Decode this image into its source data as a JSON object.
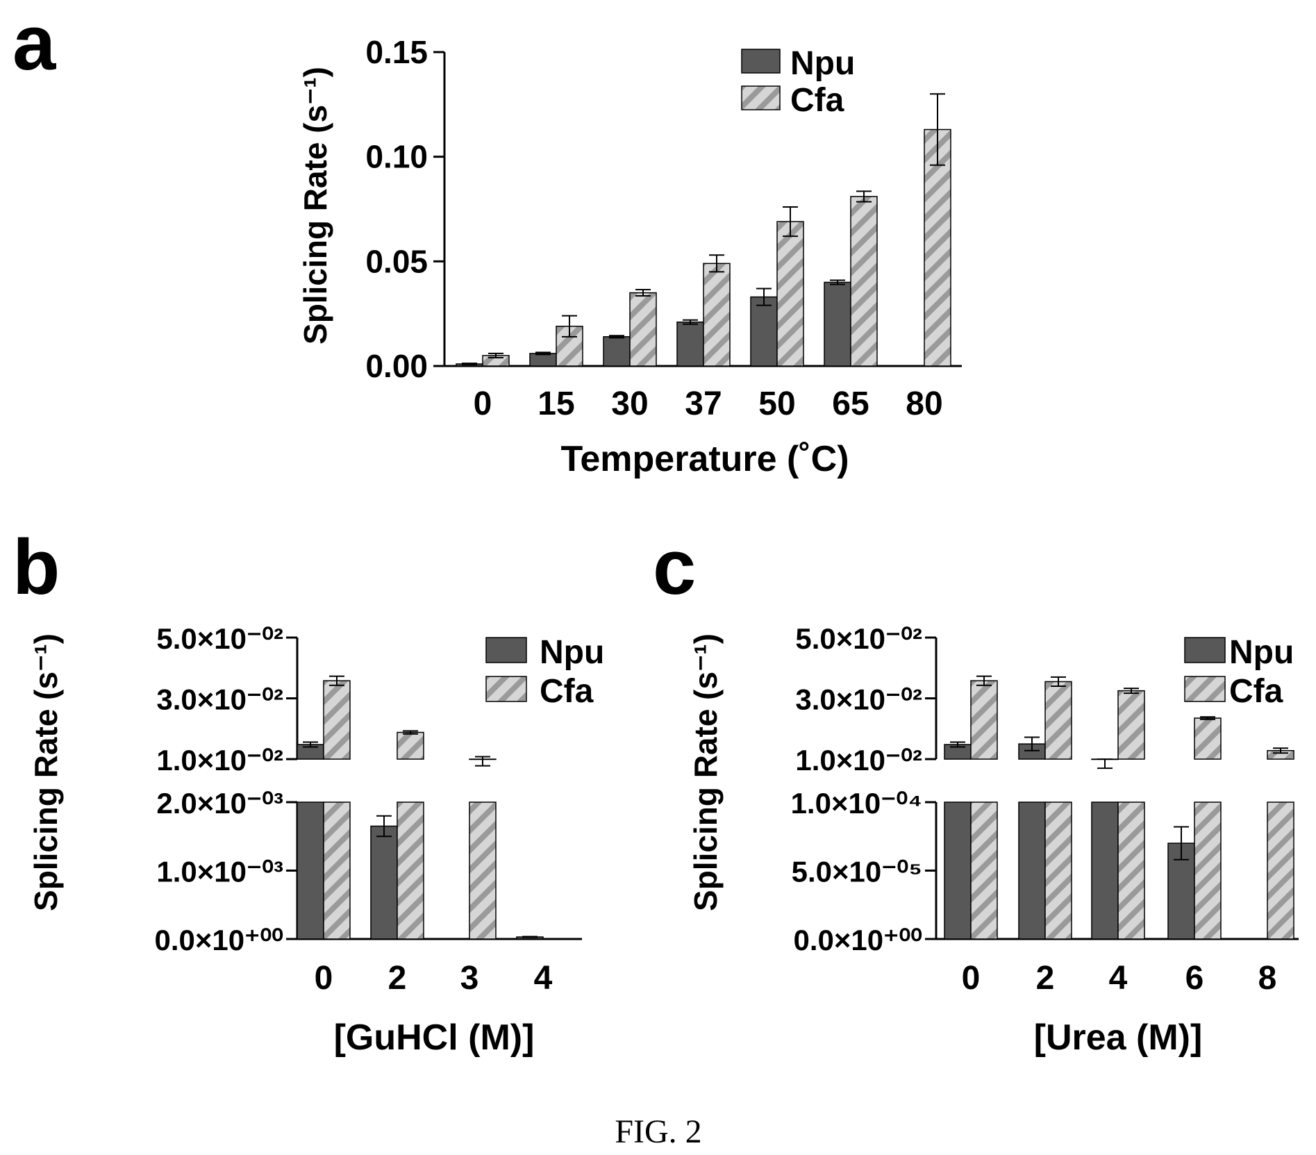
{
  "figure": {
    "caption": "FIG. 2",
    "colors": {
      "npu": "#585858",
      "cfa_fill": "#d6d6d6",
      "cfa_hatch": "#9a9a9a",
      "axis": "#000000"
    }
  },
  "chart_data": [
    {
      "panel": "a",
      "type": "bar",
      "xlabel": "Temperature (˚C)",
      "ylabel": "Splicing Rate (s⁻¹)",
      "categories": [
        "0",
        "15",
        "30",
        "37",
        "50",
        "65",
        "80"
      ],
      "ylim": [
        0,
        0.15
      ],
      "yticks": [
        0.0,
        0.05,
        0.1,
        0.15
      ],
      "ytick_labels": [
        "0.00",
        "0.05",
        "0.10",
        "0.15"
      ],
      "legend": [
        "Npu",
        "Cfa"
      ],
      "legend_position": "top-right",
      "series": [
        {
          "name": "Npu",
          "values": [
            0.001,
            0.006,
            0.014,
            0.021,
            0.033,
            0.04,
            null
          ],
          "errors": [
            0.0003,
            0.0005,
            0.0005,
            0.001,
            0.004,
            0.001,
            null
          ]
        },
        {
          "name": "Cfa",
          "values": [
            0.005,
            0.019,
            0.035,
            0.049,
            0.069,
            0.081,
            0.113
          ],
          "errors": [
            0.001,
            0.005,
            0.0015,
            0.004,
            0.007,
            0.0025,
            0.017
          ]
        }
      ]
    },
    {
      "panel": "b",
      "type": "bar",
      "xlabel": "[GuHCl (M)]",
      "ylabel": "Splicing Rate (s⁻¹)",
      "categories": [
        "0",
        "2",
        "3",
        "4"
      ],
      "broken_axis": true,
      "upper_ylim": [
        0.01,
        0.05
      ],
      "upper_yticks": [
        0.01,
        0.03,
        0.05
      ],
      "upper_ytick_labels": [
        "1.0×10⁻⁰²",
        "3.0×10⁻⁰²",
        "5.0×10⁻⁰²"
      ],
      "lower_ylim": [
        0,
        0.002
      ],
      "lower_yticks": [
        0,
        0.001,
        0.002
      ],
      "lower_ytick_labels": [
        "0.0×10⁺⁰⁰",
        "1.0×10⁻⁰³",
        "2.0×10⁻⁰³"
      ],
      "legend": [
        "Npu",
        "Cfa"
      ],
      "legend_position": "top-right",
      "series": [
        {
          "name": "Npu",
          "values": [
            0.0148,
            0.00165,
            0.0,
            3e-05
          ],
          "errors": [
            0.0008,
            0.00015,
            0,
            5e-06
          ]
        },
        {
          "name": "Cfa",
          "values": [
            0.0358,
            0.0188,
            0.0093,
            0.0
          ],
          "errors": [
            0.0015,
            0.0005,
            0.0015,
            0
          ]
        }
      ]
    },
    {
      "panel": "c",
      "type": "bar",
      "xlabel": "[Urea (M)]",
      "ylabel": "Splicing Rate (s⁻¹)",
      "categories": [
        "0",
        "2",
        "4",
        "6",
        "8"
      ],
      "broken_axis": true,
      "upper_ylim": [
        0.01,
        0.05
      ],
      "upper_yticks": [
        0.01,
        0.03,
        0.05
      ],
      "upper_ytick_labels": [
        "1.0×10⁻⁰²",
        "3.0×10⁻⁰²",
        "5.0×10⁻⁰²"
      ],
      "lower_ylim": [
        0,
        0.0001
      ],
      "lower_yticks": [
        0,
        5e-05,
        0.0001
      ],
      "lower_ytick_labels": [
        "0.0×10⁺⁰⁰",
        "5.0×10⁻⁰⁵",
        "1.0×10⁻⁰⁴"
      ],
      "legend": [
        "Npu",
        "Cfa"
      ],
      "legend_position": "top-right",
      "series": [
        {
          "name": "Npu",
          "values": [
            0.0148,
            0.015,
            0.0085,
            7e-05,
            0.0
          ],
          "errors": [
            0.0008,
            0.0022,
            0.0015,
            1.2e-05,
            0
          ]
        },
        {
          "name": "Cfa",
          "values": [
            0.0358,
            0.0355,
            0.0325,
            0.0235,
            0.0128
          ],
          "errors": [
            0.0015,
            0.0015,
            0.0008,
            0.0004,
            0.0008
          ]
        }
      ]
    }
  ]
}
